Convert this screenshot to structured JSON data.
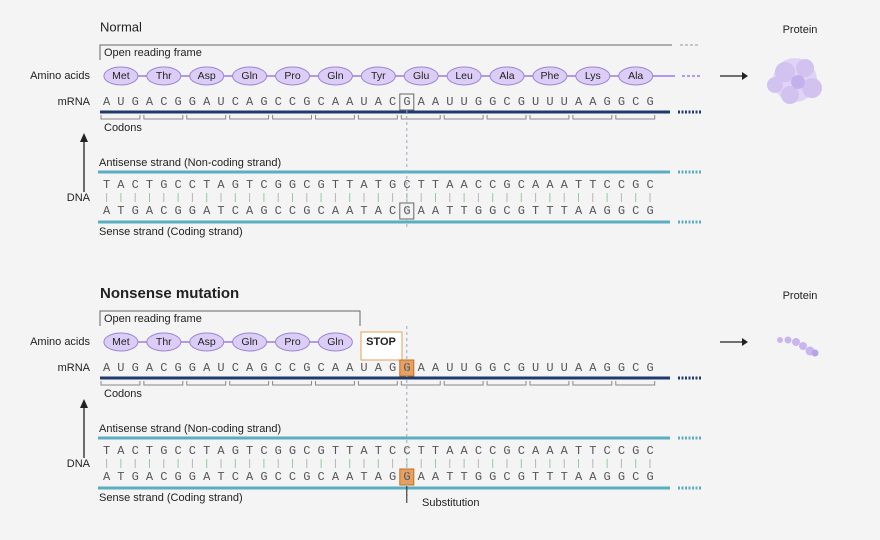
{
  "normal": {
    "title": "Normal",
    "protein_label": "Protein",
    "orf_label": "Open reading frame",
    "amino_acids_label": "Amino acids",
    "amino_acids": [
      "Met",
      "Thr",
      "Asp",
      "Gln",
      "Pro",
      "Gln",
      "Tyr",
      "Glu",
      "Leu",
      "Ala",
      "Phe",
      "Lys",
      "Ala"
    ],
    "mrna_label": "mRNA",
    "mrna": "AUGACGGAUCAGCCGCAAUACGAAUUGGCGUUUAAGGCG",
    "codons_label": "Codons",
    "dna_label": "DNA",
    "antisense_label": "Antisense strand (Non-coding strand)",
    "antisense": "TACTGCCTAGTCGGCGTTATGCTTAACCGCAAATTCCGC",
    "sense": "ATGACGGATCAGCCGCAATACGAATTGGCGTTTAAGGCG",
    "sense_label": "Sense strand (Coding strand)"
  },
  "nonsense": {
    "title": "Nonsense mutation",
    "protein_label": "Protein",
    "orf_label": "Open reading frame",
    "amino_acids_label": "Amino acids",
    "amino_acids": [
      "Met",
      "Thr",
      "Asp",
      "Gln",
      "Pro",
      "Gln"
    ],
    "stop_label": "STOP",
    "mrna_label": "mRNA",
    "mrna": "AUGACGGAUCAGCCGCAAUAGGAAUUGGCGUUUAAGGCG",
    "codons_label": "Codons",
    "dna_label": "DNA",
    "antisense_label": "Antisense strand (Non-coding strand)",
    "antisense": "TACTGCCTAGTCGGCGTTATCCTTAACCGCAAATTCCGC",
    "sense": "ATGACGGATCAGCCGCAATAGGAATTGGCGTTTAAGGCG",
    "sense_label": "Sense strand (Coding strand)",
    "substitution_label": "Substitution"
  }
}
